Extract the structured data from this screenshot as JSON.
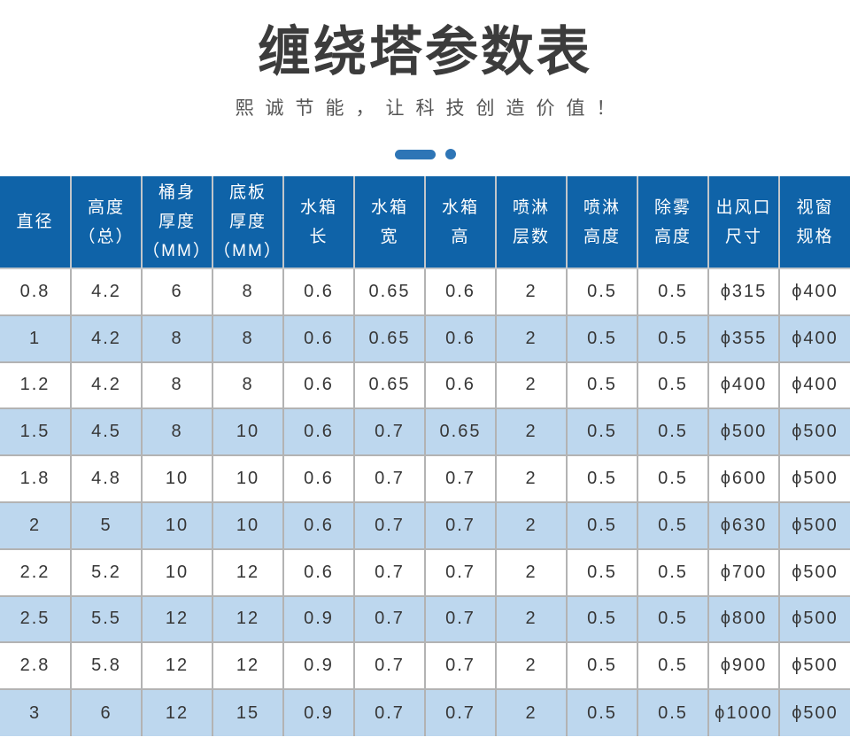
{
  "page": {
    "title": "缠绕塔参数表",
    "subtitle": "熙诚节能，让科技创造价值！",
    "accent_color": "#2e75b6"
  },
  "table": {
    "header_color": "#0f63a8",
    "stripe_color": "#bdd7ee",
    "columns": [
      {
        "label": "直径",
        "lines": [
          "直径"
        ]
      },
      {
        "label": "高度（总）",
        "lines": [
          "高度",
          "（总）"
        ]
      },
      {
        "label": "桶身厚度（MM）",
        "lines": [
          "桶身",
          "厚度",
          "（MM）"
        ]
      },
      {
        "label": "底板厚度（MM）",
        "lines": [
          "底板",
          "厚度",
          "（MM）"
        ]
      },
      {
        "label": "水箱长",
        "lines": [
          "水箱",
          "长"
        ]
      },
      {
        "label": "水箱宽",
        "lines": [
          "水箱",
          "宽"
        ]
      },
      {
        "label": "水箱高",
        "lines": [
          "水箱",
          "高"
        ]
      },
      {
        "label": "喷淋层数",
        "lines": [
          "喷淋",
          "层数"
        ]
      },
      {
        "label": "喷淋高度",
        "lines": [
          "喷淋",
          "高度"
        ]
      },
      {
        "label": "除雾高度",
        "lines": [
          "除雾",
          "高度"
        ]
      },
      {
        "label": "出风口尺寸",
        "lines": [
          "出风口",
          "尺寸"
        ]
      },
      {
        "label": "视窗规格",
        "lines": [
          "视窗",
          "规格"
        ]
      }
    ],
    "rows": [
      [
        "0.8",
        "4.2",
        "6",
        "8",
        "0.6",
        "0.65",
        "0.6",
        "2",
        "0.5",
        "0.5",
        "ϕ315",
        "ϕ400"
      ],
      [
        "1",
        "4.2",
        "8",
        "8",
        "0.6",
        "0.65",
        "0.6",
        "2",
        "0.5",
        "0.5",
        "ϕ355",
        "ϕ400"
      ],
      [
        "1.2",
        "4.2",
        "8",
        "8",
        "0.6",
        "0.65",
        "0.6",
        "2",
        "0.5",
        "0.5",
        "ϕ400",
        "ϕ400"
      ],
      [
        "1.5",
        "4.5",
        "8",
        "10",
        "0.6",
        "0.7",
        "0.65",
        "2",
        "0.5",
        "0.5",
        "ϕ500",
        "ϕ500"
      ],
      [
        "1.8",
        "4.8",
        "10",
        "10",
        "0.6",
        "0.7",
        "0.7",
        "2",
        "0.5",
        "0.5",
        "ϕ600",
        "ϕ500"
      ],
      [
        "2",
        "5",
        "10",
        "10",
        "0.6",
        "0.7",
        "0.7",
        "2",
        "0.5",
        "0.5",
        "ϕ630",
        "ϕ500"
      ],
      [
        "2.2",
        "5.2",
        "10",
        "12",
        "0.6",
        "0.7",
        "0.7",
        "2",
        "0.5",
        "0.5",
        "ϕ700",
        "ϕ500"
      ],
      [
        "2.5",
        "5.5",
        "12",
        "12",
        "0.9",
        "0.7",
        "0.7",
        "2",
        "0.5",
        "0.5",
        "ϕ800",
        "ϕ500"
      ],
      [
        "2.8",
        "5.8",
        "12",
        "12",
        "0.9",
        "0.7",
        "0.7",
        "2",
        "0.5",
        "0.5",
        "ϕ900",
        "ϕ500"
      ],
      [
        "3",
        "6",
        "12",
        "15",
        "0.9",
        "0.7",
        "0.7",
        "2",
        "0.5",
        "0.5",
        "ϕ1000",
        "ϕ500"
      ]
    ]
  }
}
